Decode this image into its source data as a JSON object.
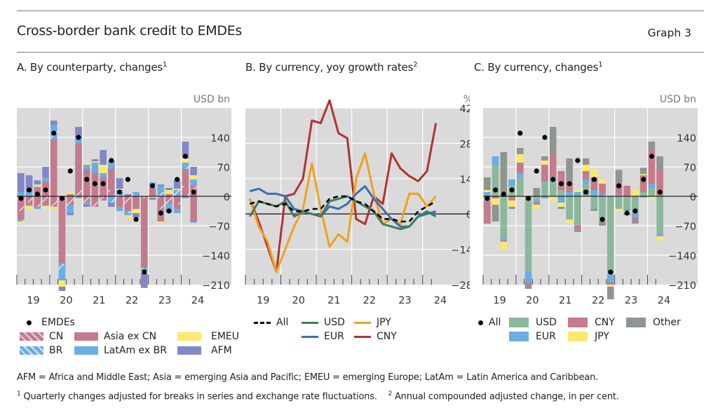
{
  "header": {
    "title": "Cross-border bank credit to EMDEs",
    "graph_number": "Graph 3"
  },
  "panels": {
    "a": {
      "title": "A. By counterparty, changes",
      "sup": "1",
      "unit": "USD bn"
    },
    "b": {
      "title": "B. By currency, yoy growth rates",
      "sup": "2",
      "unit": "%"
    },
    "c": {
      "title": "C. By currency, changes",
      "sup": "1",
      "unit": "USD bn"
    }
  },
  "colors": {
    "cn": "#c47b8d",
    "asia_ex_cn": "#c47b8d",
    "br": "#6aaee2",
    "latam_ex_br": "#6aaee2",
    "emeu": "#fce96a",
    "afm": "#8288c6",
    "usd_line": "#3d7d61",
    "eur_line": "#3a6fb5",
    "jpy_line": "#f0a21e",
    "cny_line": "#b43131",
    "usd_bar": "#8bb89c",
    "eur_bar": "#6aaee2",
    "cny_bar": "#c47b8d",
    "jpy_bar": "#fce96a",
    "other_bar": "#8f958f",
    "plot_bg": "#dadada"
  },
  "legends": {
    "a": {
      "dot": "EMDEs",
      "cn": "CN",
      "asia": "Asia ex CN",
      "emeu": "EMEU",
      "br": "BR",
      "latam": "LatAm ex BR",
      "afm": "AFM"
    },
    "b": {
      "all": "All",
      "usd": "USD",
      "jpy": "JPY",
      "eur": "EUR",
      "cny": "CNY"
    },
    "c": {
      "all": "All",
      "usd": "USD",
      "cny": "CNY",
      "other": "Other",
      "eur": "EUR",
      "jpy": "JPY"
    }
  },
  "footnotes": {
    "abbrev": "AFM = Africa and Middle East; Asia = emerging Asia and Pacific; EMEU = emerging Europe; LatAm = Latin America and Caribbean.",
    "n1_mark": "1",
    "n1": "Quarterly changes adjusted for breaks in series and exchange rate fluctuations.",
    "n2_mark": "2",
    "n2": "Annual compounded adjusted change, in per cent."
  },
  "chart_data": [
    {
      "id": "a",
      "type": "bar",
      "stacked": true,
      "title": "A. By counterparty, changes",
      "ylabel": "USD bn",
      "ylim": [
        -210,
        210
      ],
      "yticks": [
        140,
        70,
        0,
        -70,
        -140,
        -210
      ],
      "xtick_labels": [
        "19",
        "20",
        "21",
        "22",
        "23",
        "24"
      ],
      "categories": [
        "2019Q1",
        "2019Q2",
        "2019Q3",
        "2019Q4",
        "2020Q1",
        "2020Q2",
        "2020Q3",
        "2020Q4",
        "2021Q1",
        "2021Q2",
        "2021Q3",
        "2021Q4",
        "2022Q1",
        "2022Q2",
        "2022Q3",
        "2022Q4",
        "2023Q1",
        "2023Q2",
        "2023Q3",
        "2023Q4",
        "2024Q1",
        "2024Q2"
      ],
      "series": [
        {
          "name": "CN",
          "hatched": true,
          "color": "#c47b8d",
          "values": [
            -35,
            -15,
            -25,
            -20,
            -25,
            -10,
            -20,
            20,
            -15,
            -25,
            -10,
            15,
            -15,
            -25,
            -10,
            -5,
            5,
            -30,
            -15,
            -20,
            25,
            25
          ]
        },
        {
          "name": "Asia ex CN",
          "color": "#c47b8d",
          "values": [
            -20,
            -5,
            20,
            35,
            135,
            -150,
            5,
            105,
            65,
            55,
            45,
            50,
            -10,
            -10,
            -20,
            -165,
            15,
            -30,
            5,
            -10,
            40,
            -60
          ]
        },
        {
          "name": "BR",
          "hatched": true,
          "color": "#6aaee2",
          "values": [
            -5,
            -3,
            3,
            -3,
            25,
            -25,
            -5,
            -5,
            -5,
            15,
            5,
            -15,
            15,
            -5,
            5,
            -3,
            10,
            10,
            -8,
            15,
            15,
            15
          ]
        },
        {
          "name": "LatAm ex BR",
          "color": "#6aaee2",
          "values": [
            10,
            10,
            -5,
            10,
            10,
            -15,
            -15,
            15,
            10,
            10,
            5,
            20,
            -10,
            -5,
            5,
            -5,
            3,
            15,
            -15,
            -10,
            -5,
            -3
          ]
        },
        {
          "name": "EMEU",
          "color": "#fce96a",
          "values": [
            -5,
            -10,
            5,
            -5,
            -5,
            -15,
            5,
            -3,
            3,
            3,
            20,
            5,
            3,
            -5,
            -10,
            -5,
            -3,
            -3,
            10,
            3,
            10,
            10
          ]
        },
        {
          "name": "AFM",
          "color": "#8288c6",
          "values": [
            45,
            40,
            10,
            25,
            10,
            -10,
            -5,
            25,
            -5,
            5,
            35,
            -10,
            25,
            5,
            -10,
            -35,
            -5,
            3,
            5,
            20,
            40,
            20
          ]
        }
      ],
      "totals": {
        "name": "EMDEs",
        "values": [
          -5,
          15,
          5,
          15,
          150,
          -5,
          60,
          140,
          40,
          30,
          30,
          85,
          10,
          40,
          -55,
          -180,
          25,
          -40,
          -35,
          40,
          95,
          10
        ]
      }
    },
    {
      "id": "b",
      "type": "line",
      "title": "B. By currency, yoy growth rates",
      "ylabel": "%",
      "ylim": [
        -28,
        42
      ],
      "yticks": [
        42,
        28,
        14,
        0,
        -14,
        -28
      ],
      "xtick_labels": [
        "19",
        "20",
        "21",
        "22",
        "23",
        "24"
      ],
      "x": [
        "2019Q1",
        "2019Q2",
        "2019Q3",
        "2019Q4",
        "2020Q1",
        "2020Q2",
        "2020Q3",
        "2020Q4",
        "2021Q1",
        "2021Q2",
        "2021Q3",
        "2021Q4",
        "2022Q1",
        "2022Q2",
        "2022Q3",
        "2022Q4",
        "2023Q1",
        "2023Q2",
        "2023Q3",
        "2023Q4",
        "2024Q1",
        "2024Q2"
      ],
      "series": [
        {
          "name": "All",
          "style": "dashed",
          "color": "#000000",
          "values": [
            4,
            5,
            4,
            3,
            4,
            1,
            1,
            2,
            2,
            6,
            7,
            7,
            5,
            4,
            1,
            -2,
            -2,
            -3,
            -3,
            1,
            3,
            5
          ]
        },
        {
          "name": "USD",
          "color": "#3d7d61",
          "values": [
            -1,
            5,
            4,
            3,
            5,
            -1,
            1,
            0,
            -1,
            5,
            6,
            7,
            5,
            3,
            1,
            -4,
            -5,
            -6,
            -5,
            -1,
            1,
            -1
          ]
        },
        {
          "name": "EUR",
          "color": "#3a6fb5",
          "values": [
            9,
            10,
            8,
            8,
            7,
            2,
            1,
            0,
            -1,
            3,
            2,
            4,
            8,
            11,
            6,
            2,
            -2,
            -5,
            -5,
            -1,
            0,
            1
          ]
        },
        {
          "name": "JPY",
          "color": "#f0a21e",
          "values": [
            6,
            -5,
            -11,
            -23,
            -14,
            -5,
            2,
            20,
            2,
            -13,
            -8,
            -11,
            14,
            24,
            8,
            -4,
            -2,
            -4,
            8,
            8,
            3,
            7
          ]
        },
        {
          "name": "CNY",
          "color": "#b43131",
          "values": [
            6,
            -3,
            -13,
            -23,
            7,
            8,
            14,
            37,
            36,
            45,
            32,
            30,
            -2,
            -4,
            7,
            4,
            24,
            18,
            15,
            13,
            17,
            36
          ]
        }
      ]
    },
    {
      "id": "c",
      "type": "bar",
      "stacked": true,
      "title": "C. By currency, changes",
      "ylabel": "USD bn",
      "ylim": [
        -210,
        210
      ],
      "yticks": [
        140,
        70,
        0,
        -70,
        -140,
        -210
      ],
      "xtick_labels": [
        "19",
        "20",
        "21",
        "22",
        "23",
        "24"
      ],
      "categories": [
        "2019Q1",
        "2019Q2",
        "2019Q3",
        "2019Q4",
        "2020Q1",
        "2020Q2",
        "2020Q3",
        "2020Q4",
        "2021Q1",
        "2021Q2",
        "2021Q3",
        "2021Q4",
        "2022Q1",
        "2022Q2",
        "2022Q3",
        "2022Q4",
        "2023Q1",
        "2023Q2",
        "2023Q3",
        "2023Q4",
        "2024Q1",
        "2024Q2"
      ],
      "series": [
        {
          "name": "USD",
          "color": "#8bb89c",
          "values": [
            -10,
            75,
            -100,
            25,
            45,
            -180,
            -10,
            35,
            40,
            15,
            -55,
            -70,
            30,
            -30,
            -60,
            -185,
            -30,
            -30,
            -40,
            10,
            20,
            -90
          ]
        },
        {
          "name": "EUR",
          "color": "#6aaee2",
          "values": [
            10,
            20,
            -5,
            15,
            10,
            -25,
            -5,
            -5,
            5,
            -15,
            10,
            10,
            10,
            15,
            5,
            -20,
            3,
            -5,
            -10,
            -3,
            10,
            -5
          ]
        },
        {
          "name": "CNY",
          "color": "#c47b8d",
          "values": [
            -55,
            -5,
            -3,
            -10,
            25,
            -5,
            -5,
            40,
            55,
            45,
            25,
            -10,
            20,
            30,
            25,
            -5,
            30,
            25,
            -5,
            40,
            80,
            65
          ]
        },
        {
          "name": "JPY",
          "color": "#fce96a",
          "values": [
            5,
            -15,
            -20,
            -15,
            20,
            3,
            -10,
            10,
            -10,
            -10,
            -10,
            5,
            15,
            20,
            10,
            -5,
            -5,
            -5,
            15,
            3,
            -5,
            -10
          ]
        },
        {
          "name": "Other",
          "color": "#8f958f",
          "values": [
            30,
            -40,
            105,
            -5,
            15,
            -10,
            20,
            10,
            65,
            -5,
            55,
            -5,
            15,
            -5,
            -10,
            -30,
            30,
            -5,
            -10,
            15,
            20,
            30
          ]
        }
      ],
      "totals": {
        "name": "All",
        "values": [
          -5,
          15,
          5,
          15,
          150,
          -5,
          60,
          140,
          40,
          30,
          30,
          85,
          10,
          40,
          -55,
          -180,
          25,
          -40,
          -35,
          40,
          95,
          10
        ]
      }
    }
  ]
}
